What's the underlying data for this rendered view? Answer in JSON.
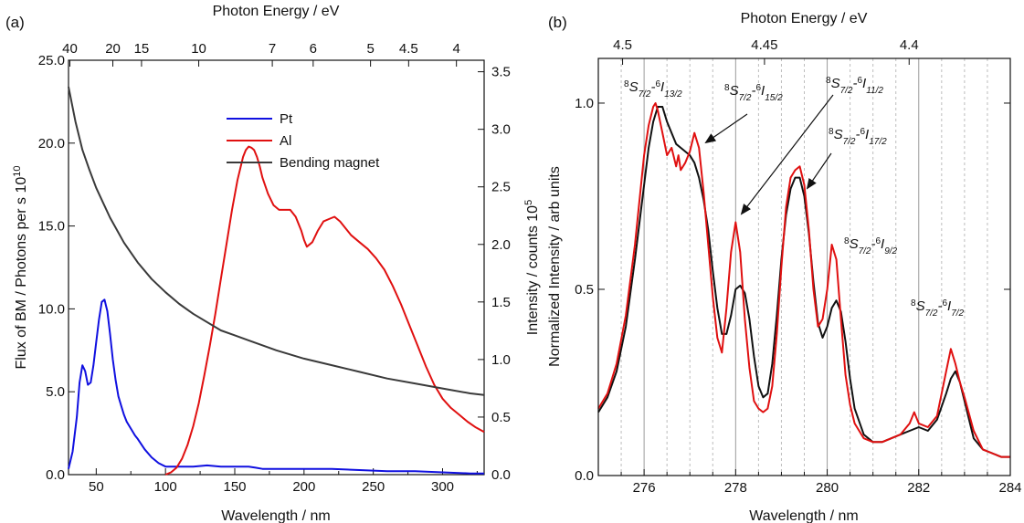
{
  "panel_labels": {
    "a": "(a)",
    "b": "(b)"
  },
  "chart_data": [
    {
      "id": "a",
      "type": "line",
      "top_xlabel": "Photon Energy / eV",
      "xlabel": "Wavelength / nm",
      "ylabel_left": "Flux of BM / Photons per s 10^10",
      "ylabel_right": "Intensity / counts 10^5",
      "xlim": [
        30,
        330
      ],
      "ylim_left": [
        0,
        25
      ],
      "ylim_right": [
        0,
        3.6
      ],
      "x_ticks": [
        50,
        100,
        150,
        200,
        250,
        300
      ],
      "y_left_ticks": [
        "0.0",
        "5.0",
        "10.0",
        "15.0",
        "20.0",
        "25.0"
      ],
      "y_right_ticks": [
        "0.0",
        "0.5",
        "1.0",
        "1.5",
        "2.0",
        "2.5",
        "3.0",
        "3.5"
      ],
      "top_ticks": [
        {
          "label": "40",
          "wl": 31
        },
        {
          "label": "20",
          "wl": 62
        },
        {
          "label": "15",
          "wl": 82.7
        },
        {
          "label": "10",
          "wl": 124
        },
        {
          "label": "7",
          "wl": 177.1
        },
        {
          "label": "6",
          "wl": 206.6
        },
        {
          "label": "5",
          "wl": 248
        },
        {
          "label": "4.5",
          "wl": 275.5
        },
        {
          "label": "4",
          "wl": 310
        }
      ],
      "legend_position": "top-right",
      "series": [
        {
          "name": "Pt",
          "color": "#1010e0",
          "axis": "right",
          "x": [
            30,
            33,
            36,
            38,
            40,
            42,
            44,
            46,
            48,
            50,
            52,
            54,
            56,
            58,
            60,
            62,
            64,
            66,
            68,
            70,
            72,
            74,
            76,
            78,
            80,
            85,
            90,
            95,
            100,
            105,
            110,
            120,
            130,
            140,
            150,
            160,
            165,
            170,
            180,
            200,
            220,
            240,
            260,
            280,
            300,
            320,
            330
          ],
          "y": [
            0.05,
            0.2,
            0.5,
            0.8,
            0.95,
            0.9,
            0.78,
            0.8,
            0.95,
            1.15,
            1.35,
            1.5,
            1.52,
            1.42,
            1.22,
            1.0,
            0.82,
            0.68,
            0.6,
            0.52,
            0.46,
            0.42,
            0.38,
            0.34,
            0.31,
            0.22,
            0.15,
            0.1,
            0.07,
            0.07,
            0.07,
            0.07,
            0.08,
            0.07,
            0.07,
            0.07,
            0.06,
            0.05,
            0.05,
            0.05,
            0.05,
            0.04,
            0.03,
            0.03,
            0.02,
            0.01,
            0.01
          ]
        },
        {
          "name": "Al",
          "color": "#e01010",
          "axis": "right",
          "x": [
            100,
            104,
            108,
            112,
            116,
            120,
            124,
            128,
            132,
            136,
            140,
            144,
            148,
            152,
            156,
            158,
            160,
            162,
            164,
            166,
            168,
            170,
            174,
            178,
            182,
            186,
            190,
            194,
            198,
            200,
            202,
            206,
            210,
            214,
            218,
            222,
            226,
            230,
            234,
            240,
            246,
            252,
            258,
            264,
            270,
            276,
            282,
            288,
            294,
            300,
            306,
            312,
            318,
            324,
            330
          ],
          "y": [
            0.0,
            0.02,
            0.06,
            0.14,
            0.26,
            0.42,
            0.62,
            0.86,
            1.12,
            1.4,
            1.7,
            2.0,
            2.3,
            2.56,
            2.76,
            2.82,
            2.85,
            2.84,
            2.82,
            2.76,
            2.68,
            2.58,
            2.44,
            2.34,
            2.3,
            2.3,
            2.3,
            2.24,
            2.12,
            2.04,
            1.98,
            2.02,
            2.12,
            2.2,
            2.22,
            2.24,
            2.2,
            2.14,
            2.08,
            2.02,
            1.96,
            1.88,
            1.78,
            1.64,
            1.48,
            1.3,
            1.12,
            0.94,
            0.78,
            0.66,
            0.58,
            0.52,
            0.46,
            0.41,
            0.37
          ]
        },
        {
          "name": "Bending magnet",
          "color": "#3a3a3a",
          "axis": "left",
          "x": [
            30,
            35,
            40,
            45,
            50,
            55,
            60,
            70,
            80,
            90,
            100,
            110,
            120,
            140,
            160,
            180,
            200,
            220,
            240,
            260,
            280,
            300,
            320,
            330
          ],
          "y": [
            23.4,
            21.3,
            19.6,
            18.4,
            17.3,
            16.4,
            15.5,
            14.0,
            12.8,
            11.8,
            11.0,
            10.3,
            9.7,
            8.7,
            8.1,
            7.5,
            7.0,
            6.6,
            6.2,
            5.8,
            5.5,
            5.2,
            4.9,
            4.8
          ]
        }
      ]
    },
    {
      "id": "b",
      "type": "line",
      "top_xlabel": "Photon Energy / eV",
      "xlabel": "Wavelength / nm",
      "ylabel": "Normalized Intensity / arb units",
      "xlim": [
        275,
        284
      ],
      "ylim": [
        0,
        1.12
      ],
      "x_ticks": [
        276,
        278,
        280,
        282,
        284
      ],
      "y_ticks": [
        "0.0",
        "0.5",
        "1.0"
      ],
      "top_ticks": [
        {
          "label": "4.5",
          "wl": 275.53
        },
        {
          "label": "4.45",
          "wl": 278.63
        },
        {
          "label": "4.4",
          "wl": 281.79
        }
      ],
      "solid_gridlines": [
        276,
        278,
        280,
        282
      ],
      "dashed_gridlines": [
        275.5,
        276.5,
        277,
        277.5,
        278.5,
        279,
        279.5,
        280.5,
        281,
        281.5,
        282.5,
        283,
        283.5
      ],
      "series": [
        {
          "name": "black",
          "color": "#111111",
          "x": [
            275,
            275.2,
            275.4,
            275.6,
            275.8,
            276,
            276.1,
            276.2,
            276.3,
            276.4,
            276.5,
            276.6,
            276.7,
            276.8,
            276.9,
            277,
            277.1,
            277.2,
            277.3,
            277.4,
            277.5,
            277.6,
            277.7,
            277.8,
            277.9,
            278,
            278.1,
            278.2,
            278.3,
            278.4,
            278.5,
            278.6,
            278.7,
            278.8,
            278.9,
            279,
            279.1,
            279.2,
            279.3,
            279.4,
            279.5,
            279.6,
            279.7,
            279.8,
            279.9,
            280,
            280.1,
            280.2,
            280.3,
            280.4,
            280.5,
            280.6,
            280.8,
            281,
            281.2,
            281.4,
            281.6,
            281.8,
            282,
            282.2,
            282.4,
            282.6,
            282.7,
            282.8,
            282.9,
            283,
            283.2,
            283.4,
            283.6,
            283.8,
            284
          ],
          "y": [
            0.17,
            0.21,
            0.28,
            0.4,
            0.58,
            0.78,
            0.88,
            0.95,
            0.99,
            0.99,
            0.95,
            0.92,
            0.89,
            0.88,
            0.87,
            0.86,
            0.84,
            0.8,
            0.74,
            0.66,
            0.55,
            0.45,
            0.38,
            0.38,
            0.43,
            0.5,
            0.51,
            0.49,
            0.42,
            0.32,
            0.24,
            0.21,
            0.22,
            0.3,
            0.43,
            0.58,
            0.7,
            0.77,
            0.8,
            0.8,
            0.75,
            0.65,
            0.52,
            0.41,
            0.37,
            0.4,
            0.45,
            0.47,
            0.44,
            0.36,
            0.26,
            0.18,
            0.11,
            0.09,
            0.09,
            0.1,
            0.11,
            0.12,
            0.13,
            0.12,
            0.15,
            0.22,
            0.26,
            0.28,
            0.25,
            0.2,
            0.1,
            0.07,
            0.06,
            0.05,
            0.05
          ]
        },
        {
          "name": "red",
          "color": "#e01010",
          "x": [
            275,
            275.2,
            275.4,
            275.6,
            275.8,
            276,
            276.1,
            276.2,
            276.25,
            276.3,
            276.4,
            276.5,
            276.6,
            276.7,
            276.75,
            276.8,
            276.9,
            277,
            277.1,
            277.2,
            277.3,
            277.4,
            277.5,
            277.6,
            277.7,
            277.8,
            277.9,
            278,
            278.1,
            278.2,
            278.3,
            278.4,
            278.5,
            278.6,
            278.7,
            278.8,
            278.9,
            279,
            279.1,
            279.2,
            279.3,
            279.4,
            279.5,
            279.6,
            279.7,
            279.8,
            279.9,
            280,
            280.1,
            280.2,
            280.3,
            280.4,
            280.5,
            280.6,
            280.8,
            281,
            281.2,
            281.4,
            281.6,
            281.8,
            281.9,
            282,
            282.2,
            282.4,
            282.6,
            282.7,
            282.8,
            282.9,
            283,
            283.2,
            283.4,
            283.6,
            283.8,
            284
          ],
          "y": [
            0.18,
            0.22,
            0.3,
            0.43,
            0.62,
            0.86,
            0.94,
            0.99,
            1.0,
            0.98,
            0.92,
            0.86,
            0.88,
            0.83,
            0.86,
            0.82,
            0.84,
            0.87,
            0.92,
            0.88,
            0.76,
            0.62,
            0.48,
            0.37,
            0.33,
            0.45,
            0.6,
            0.68,
            0.6,
            0.42,
            0.29,
            0.2,
            0.18,
            0.17,
            0.18,
            0.24,
            0.38,
            0.56,
            0.72,
            0.8,
            0.82,
            0.83,
            0.78,
            0.66,
            0.5,
            0.4,
            0.42,
            0.5,
            0.62,
            0.58,
            0.42,
            0.27,
            0.19,
            0.14,
            0.1,
            0.09,
            0.09,
            0.1,
            0.11,
            0.14,
            0.17,
            0.14,
            0.13,
            0.16,
            0.28,
            0.34,
            0.3,
            0.25,
            0.21,
            0.12,
            0.07,
            0.06,
            0.05,
            0.05
          ]
        }
      ]
    }
  ],
  "legend_a": [
    "Pt",
    "Al",
    "Bending magnet"
  ],
  "annotations_b": [
    {
      "id": "13-2",
      "sub_main": "7/2",
      "sup2": "6",
      "letter2": "I",
      "sub2": "13/2"
    },
    {
      "id": "15-2",
      "sub_main": "7/2",
      "sup2": "6",
      "letter2": "I",
      "sub2": "15/2"
    },
    {
      "id": "11-2",
      "sub_main": "7/2",
      "sup2": "6",
      "letter2": "I",
      "sub2": "11/2"
    },
    {
      "id": "17-2",
      "sub_main": "7/2",
      "sup2": "6",
      "letter2": "I",
      "sub2": "17/2"
    },
    {
      "id": "9-2",
      "sub_main": "7/2",
      "sup2": "6",
      "letter2": "I",
      "sub2": "9/2"
    },
    {
      "id": "7-2",
      "sub_main": "7/2",
      "sup2": "6",
      "letter2": "I",
      "sub2": "7/2"
    }
  ]
}
